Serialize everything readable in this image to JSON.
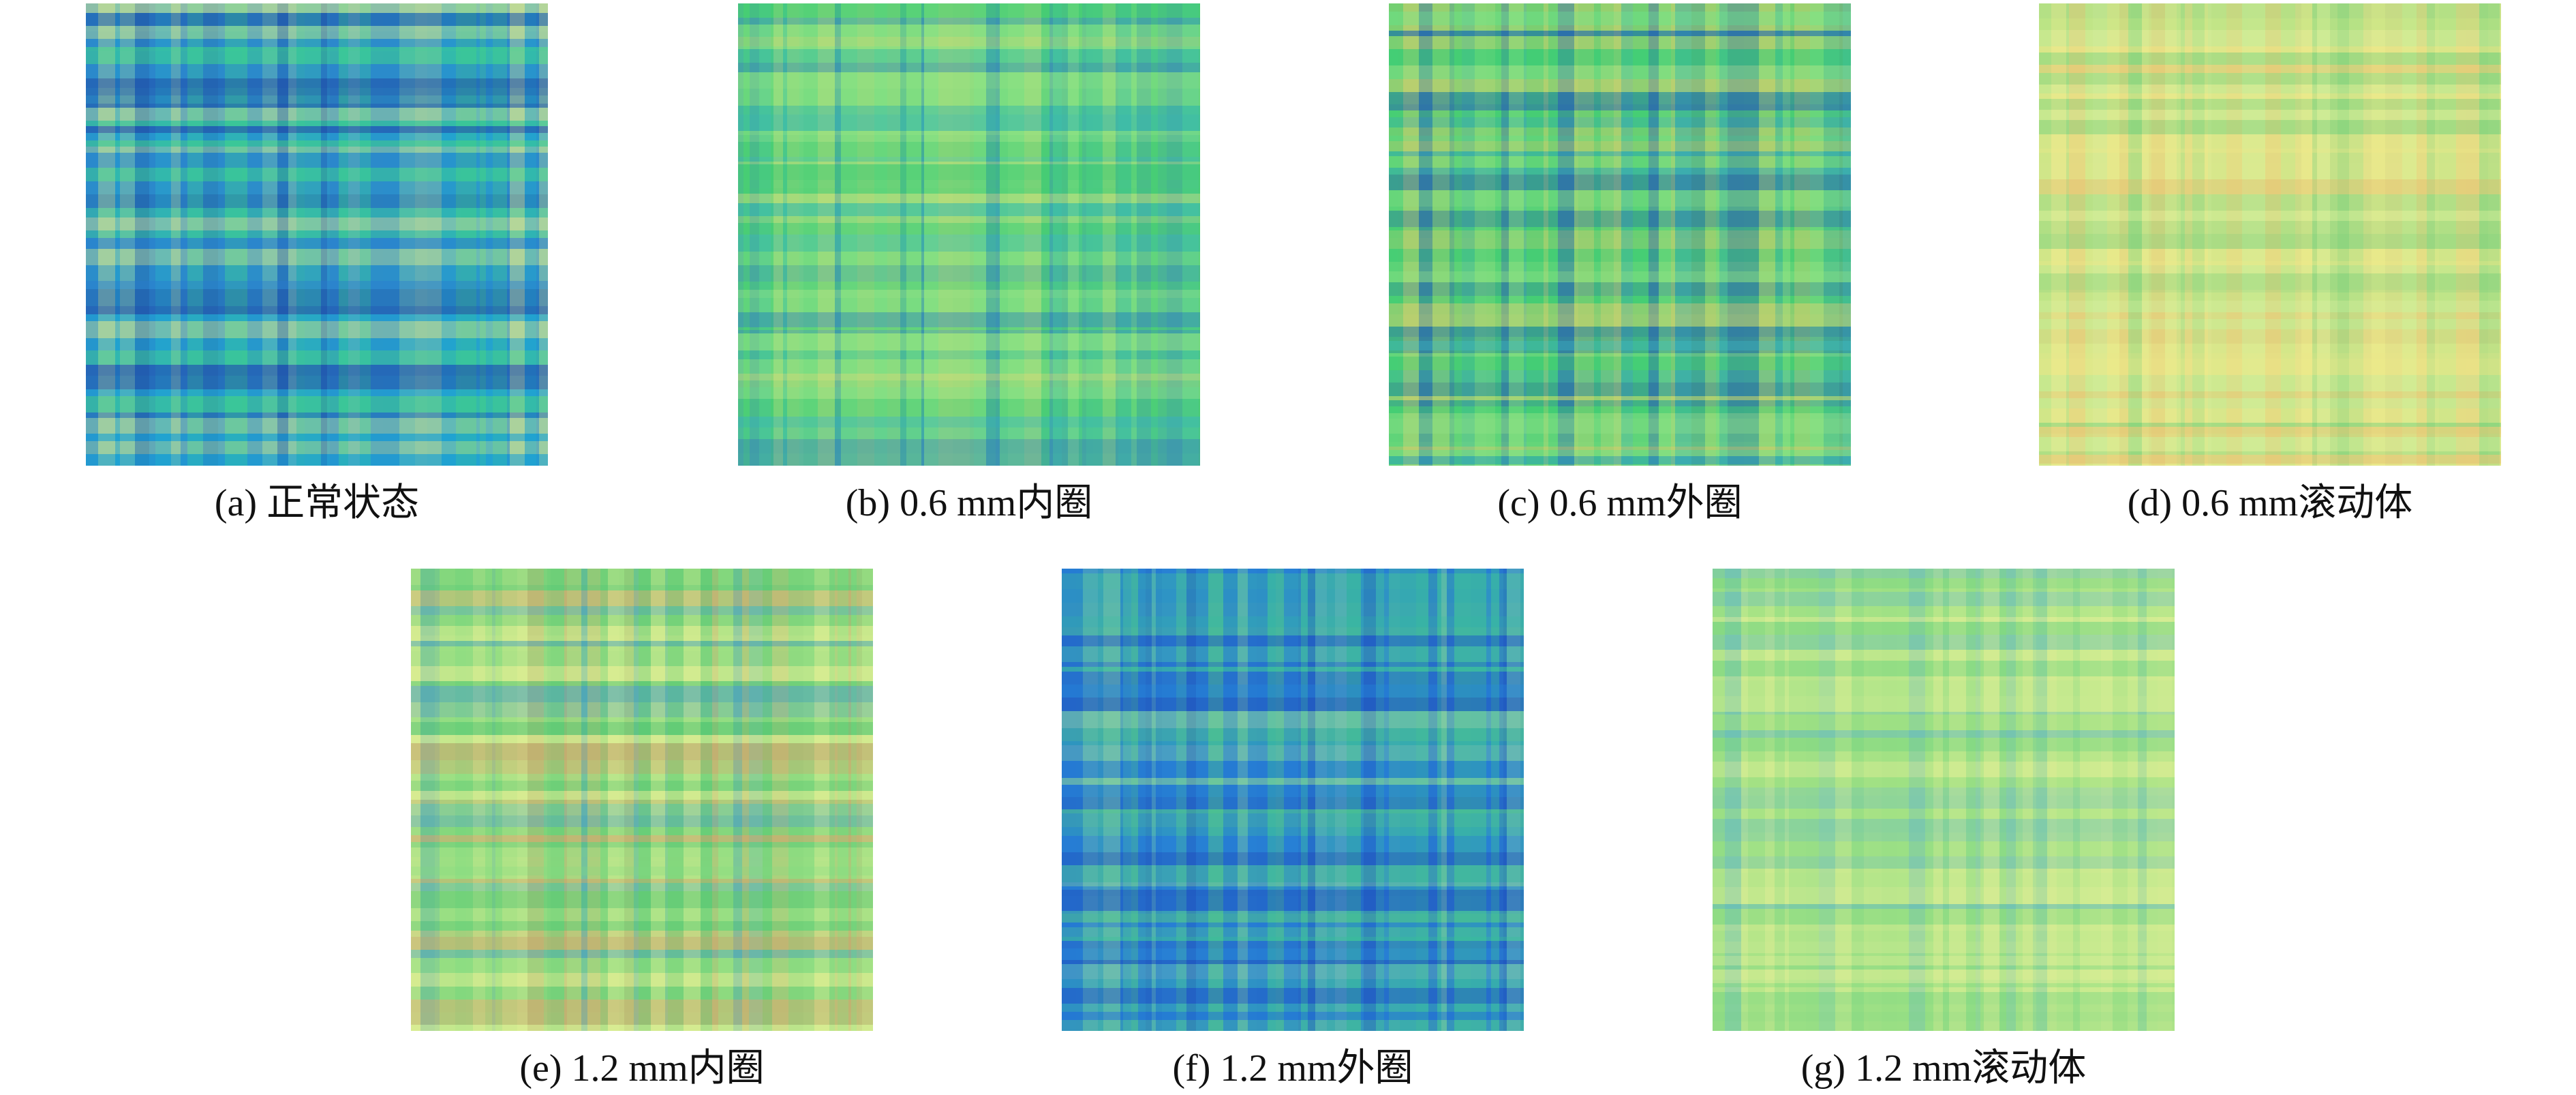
{
  "panels": [
    {
      "caption": "(a) 正常状态"
    },
    {
      "caption": "(b) 0.6 mm内圈"
    },
    {
      "caption": "(c) 0.6 mm外圈"
    },
    {
      "caption": "(d) 0.6 mm滚动体"
    },
    {
      "caption": "(e) 1.2 mm内圈"
    },
    {
      "caption": "(f) 1.2 mm外圈"
    },
    {
      "caption": "(g) 1.2 mm滚动体"
    }
  ]
}
